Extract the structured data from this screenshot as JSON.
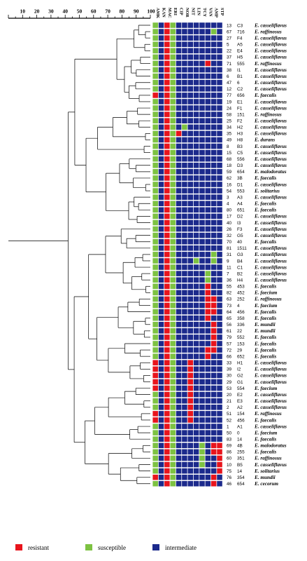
{
  "scale": {
    "ticks": [
      "10",
      "20",
      "30",
      "40",
      "50",
      "60",
      "70",
      "80",
      "90",
      "100"
    ]
  },
  "antibiotics": [
    "AMK",
    "KAN",
    "MAC",
    "ERI",
    "CIP",
    "NOR",
    "NIT",
    "LIN",
    "TCY",
    "VAN",
    "AMP",
    "STP"
  ],
  "colors": {
    "resistant": "#e8141c",
    "susceptible": "#7dc242",
    "intermediate": "#1c2a8c"
  },
  "legend": [
    {
      "key": "resistant",
      "label": "resistant"
    },
    {
      "key": "susceptible",
      "label": "susceptible"
    },
    {
      "key": "intermediate",
      "label": "intermediate"
    }
  ],
  "strains": [
    {
      "num": "13",
      "code": "C3",
      "species": "E. casseliflavus",
      "pattern": "GBRGBBBBBBBB"
    },
    {
      "num": "67",
      "code": "716",
      "species": "E. raffinosus",
      "pattern": "GBRGBBBBBBGB"
    },
    {
      "num": "27",
      "code": "F4",
      "species": "E. casseliflavus",
      "pattern": "GBRGBBBBBBBB"
    },
    {
      "num": "5",
      "code": "A5",
      "species": "E. casseliflavus",
      "pattern": "GBRGBBBBBBBB"
    },
    {
      "num": "22",
      "code": "E4",
      "species": "E. casseliflavus",
      "pattern": "GBRGBBBBBBBB"
    },
    {
      "num": "37",
      "code": "H5",
      "species": "E. casseliflavus",
      "pattern": "GBRGBBBBBBBB"
    },
    {
      "num": "71",
      "code": "555",
      "species": "E. raffinosus",
      "pattern": "GBRGBBBBBRBB"
    },
    {
      "num": "38",
      "code": "I1",
      "species": "E. casseliflavus",
      "pattern": "GBRGBBBBBBBB"
    },
    {
      "num": "6",
      "code": "B1",
      "species": "E. casseliflavus",
      "pattern": "GBRGBBBBBBBB"
    },
    {
      "num": "47",
      "code": "6",
      "species": "E. casseliflavus",
      "pattern": "GBRGBBBBBBBB"
    },
    {
      "num": "12",
      "code": "C2",
      "species": "E. casseliflavus",
      "pattern": "GBRGBBBBBBBB"
    },
    {
      "num": "77",
      "code": "656",
      "species": "E. faecalis",
      "pattern": "RBRGBBBBBBBB"
    },
    {
      "num": "19",
      "code": "E1",
      "species": "E. casseliflavus",
      "pattern": "GBRGBBBBBBBB"
    },
    {
      "num": "24",
      "code": "F1",
      "species": "E. casseliflavus",
      "pattern": "GBRGBBBBBBBB"
    },
    {
      "num": "58",
      "code": "151",
      "species": "E. raffinosus",
      "pattern": "GBRGBBBBBBBB"
    },
    {
      "num": "25",
      "code": "F2",
      "species": "E. casseliflavus",
      "pattern": "GBRGBBBBBBBB"
    },
    {
      "num": "34",
      "code": "H2",
      "species": "E. casseliflavus",
      "pattern": "GBRGBGBBBBBB"
    },
    {
      "num": "35",
      "code": "H3",
      "species": "E. casseliflavus",
      "pattern": "GBRGRBBBBBBB"
    },
    {
      "num": "49",
      "code": "H8",
      "species": "E. durans",
      "pattern": "GBRGBBBBBBBB"
    },
    {
      "num": "8",
      "code": "B3",
      "species": "E. casseliflavus",
      "pattern": "GBRGBBBBBBBB"
    },
    {
      "num": "15",
      "code": "C5",
      "species": "E. casseliflavus",
      "pattern": "GBRGBBBBBBBB"
    },
    {
      "num": "68",
      "code": "556",
      "species": "E. casseliflavus",
      "pattern": "GBRGBBBBBBBB"
    },
    {
      "num": "18",
      "code": "D3",
      "species": "E. casseliflavus",
      "pattern": "GBRGBBBBBBBB"
    },
    {
      "num": "59",
      "code": "654",
      "species": "E. malodoratus",
      "pattern": "GBRGBBBBBBBB"
    },
    {
      "num": "62",
      "code": "3B",
      "species": "E. faecalis",
      "pattern": "GBRGBBBBBBBB"
    },
    {
      "num": "16",
      "code": "D1",
      "species": "E. casseliflavus",
      "pattern": "GBRGBBBBBBBB"
    },
    {
      "num": "54",
      "code": "553",
      "species": "E. solitarius",
      "pattern": "GBRGBBBBBBBB"
    },
    {
      "num": "3",
      "code": "A3",
      "species": "E. casseliflavus",
      "pattern": "GBRGBBBBBBBB"
    },
    {
      "num": "4",
      "code": "A4",
      "species": "E. faecalis",
      "pattern": "GBRGBBBBBBBB"
    },
    {
      "num": "80",
      "code": "651",
      "species": "E. faecalis",
      "pattern": "GBRGBBBBBBBB"
    },
    {
      "num": "17",
      "code": "D2",
      "species": "E. casseliflavus",
      "pattern": "GBRGBBBBBBBB"
    },
    {
      "num": "40",
      "code": "I3",
      "species": "E. casseliflavus",
      "pattern": "GBRGBBBBBBBB"
    },
    {
      "num": "26",
      "code": "F3",
      "species": "E. casseliflavus",
      "pattern": "GBRGBBBBBBBB"
    },
    {
      "num": "32",
      "code": "G5",
      "species": "E. casseliflavus",
      "pattern": "GBRGBBBBBBBB"
    },
    {
      "num": "70",
      "code": "40",
      "species": "E. faecalis",
      "pattern": "GBRGBBBBBBBB"
    },
    {
      "num": "81",
      "code": "1511",
      "species": "E. casseliflavus",
      "pattern": "GBRGBBBBBBBB"
    },
    {
      "num": "31",
      "code": "G3",
      "species": "E. casseliflavus",
      "pattern": "GBRGBBBBBBGB"
    },
    {
      "num": "9",
      "code": "B4",
      "species": "E. casseliflavus",
      "pattern": "GBRGBBBGBBGB"
    },
    {
      "num": "11",
      "code": "C1",
      "species": "E. casseliflavus",
      "pattern": "GBRGBBBBBBBB"
    },
    {
      "num": "7",
      "code": "B2",
      "species": "E. casseliflavus",
      "pattern": "GBRGBBBBBGBB"
    },
    {
      "num": "36",
      "code": "H4",
      "species": "E. casseliflavus",
      "pattern": "GBRGBBBBBGBB"
    },
    {
      "num": "55",
      "code": "453",
      "species": "E. faecalis",
      "pattern": "GBRGBBBBBRBB"
    },
    {
      "num": "82",
      "code": "452",
      "species": "E. faecium",
      "pattern": "GBRGBBBBBRBB"
    },
    {
      "num": "63",
      "code": "252",
      "species": "E. raffinosus",
      "pattern": "GBRGBBBBBRRB"
    },
    {
      "num": "73",
      "code": "4",
      "species": "E. faecium",
      "pattern": "GBRGBBBBBRRB"
    },
    {
      "num": "64",
      "code": "456",
      "species": "E. faecalis",
      "pattern": "GBRGBBBBBRRB"
    },
    {
      "num": "65",
      "code": "358",
      "species": "E. faecalis",
      "pattern": "GBRGBBBBBRBB"
    },
    {
      "num": "56",
      "code": "336",
      "species": "E. mundii",
      "pattern": "GBRGBBBBBBRB"
    },
    {
      "num": "61",
      "code": "22",
      "species": "E. mundii",
      "pattern": "GBRGBBBBBBRB"
    },
    {
      "num": "79",
      "code": "552",
      "species": "E. faecalis",
      "pattern": "GBRGBBBBBBRB"
    },
    {
      "num": "57",
      "code": "153",
      "species": "E. faecalis",
      "pattern": "GBRGBBBBBBRB"
    },
    {
      "num": "72",
      "code": "29",
      "species": "E. faecalis",
      "pattern": "GBRGBBBBBRRB"
    },
    {
      "num": "66",
      "code": "652",
      "species": "E. faecalis",
      "pattern": "GBRGBBBBBRBB"
    },
    {
      "num": "33",
      "code": "H1",
      "species": "E. casseliflavus",
      "pattern": "RBRGBBRBBBBB"
    },
    {
      "num": "39",
      "code": "I2",
      "species": "E. casseliflavus",
      "pattern": "RBRGBBRBBBBB"
    },
    {
      "num": "30",
      "code": "G2",
      "species": "E. casseliflavus",
      "pattern": "RBRGBBRBBBBB"
    },
    {
      "num": "29",
      "code": "G1",
      "species": "E. casseliflavus",
      "pattern": "RBRGBBRBBBBB"
    },
    {
      "num": "53",
      "code": "554",
      "species": "E. faecium",
      "pattern": "RBRGBBRBBBBB"
    },
    {
      "num": "20",
      "code": "E2",
      "species": "E. casseliflavus",
      "pattern": "GBRGBBRBBBBB"
    },
    {
      "num": "21",
      "code": "E3",
      "species": "E. casseliflavus",
      "pattern": "GBRGBBRBBBBB"
    },
    {
      "num": "2",
      "code": "A2",
      "species": "E. casseliflavus",
      "pattern": "GBRGBBRBBBBB"
    },
    {
      "num": "51",
      "code": "154",
      "species": "E. raffinosus",
      "pattern": "RBRGBBRBBBBB"
    },
    {
      "num": "52",
      "code": "456",
      "species": "E. faecalis",
      "pattern": "RBRGBBRBBBBB"
    },
    {
      "num": "1",
      "code": "A1",
      "species": "E. casseliflavus",
      "pattern": "GBRGBBBBBBBB"
    },
    {
      "num": "50",
      "code": "0",
      "species": "E. faecium",
      "pattern": "GBRGBBBBBBBB"
    },
    {
      "num": "83",
      "code": "14",
      "species": "E. faecalis",
      "pattern": "GBRGBBBBBBBB"
    },
    {
      "num": "69",
      "code": "4B",
      "species": "E. malodoratus",
      "pattern": "GBRGBBBBGBRR"
    },
    {
      "num": "86",
      "code": "255",
      "species": "E. faecalis",
      "pattern": "GBRGBBBBGBRR"
    },
    {
      "num": "60",
      "code": "351",
      "species": "E. raffinosus",
      "pattern": "GBRGBBBBGBBR"
    },
    {
      "num": "10",
      "code": "B5",
      "species": "E. casseliflavus",
      "pattern": "GBRGBBBBGBBR"
    },
    {
      "num": "75",
      "code": "14",
      "species": "E. solitarius",
      "pattern": "GBRGBBBBBBBR"
    },
    {
      "num": "76",
      "code": "354",
      "species": "E. mundii",
      "pattern": "RBRGBBBBBBRB"
    },
    {
      "num": "46",
      "code": "654",
      "species": "E. cecorum",
      "pattern": "GBRGBBBBBBRB"
    }
  ]
}
